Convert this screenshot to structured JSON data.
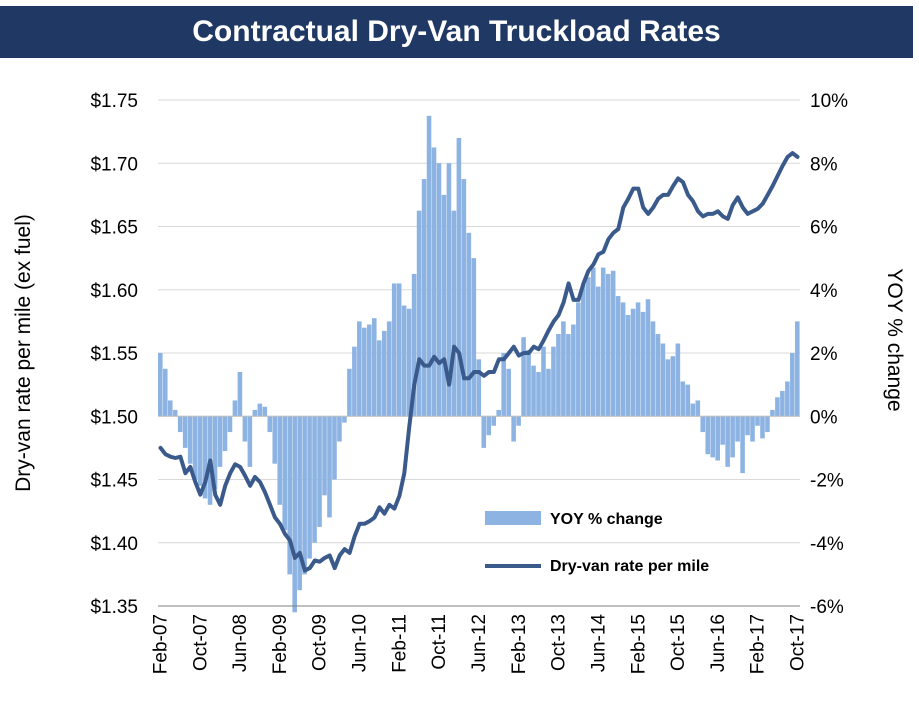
{
  "header": {
    "title": "Contractual Dry-Van Truckload Rates"
  },
  "colors": {
    "title_bg": "#1f3864",
    "bar": "#8db3e2",
    "line": "#3a5a8c",
    "grid": "#d9d9d9"
  },
  "chart_data": {
    "type": "bar+line",
    "title": "Contractual Dry-Van Truckload Rates",
    "ylabel": "Dry-van rate per mile (ex fuel)",
    "y2label": "YOY % change",
    "ylim": [
      1.35,
      1.75
    ],
    "y2lim": [
      -6,
      10
    ],
    "grid": true,
    "y_ticks": [
      "$1.35",
      "$1.40",
      "$1.45",
      "$1.50",
      "$1.55",
      "$1.60",
      "$1.65",
      "$1.70",
      "$1.75"
    ],
    "y2_ticks": [
      "-6%",
      "-4%",
      "-2%",
      "0%",
      "2%",
      "4%",
      "6%",
      "8%",
      "10%"
    ],
    "x_ticks": [
      "Feb-07",
      "Oct-07",
      "Jun-08",
      "Feb-09",
      "Oct-09",
      "Jun-10",
      "Feb-11",
      "Oct-11",
      "Jun-12",
      "Feb-13",
      "Oct-13",
      "Jun-14",
      "Feb-15",
      "Oct-15",
      "Jun-16",
      "Feb-17",
      "Oct-17"
    ],
    "x_start": "2007-02",
    "x_end": "2017-10",
    "legend": [
      "YOY % change",
      "Dry-van rate per mile"
    ],
    "legend_position": "lower-right",
    "series": [
      {
        "name": "YOY % change",
        "type": "bar",
        "axis": "right",
        "points": [
          [
            "2007-02",
            2.0
          ],
          [
            "2007-03",
            1.5
          ],
          [
            "2007-04",
            0.5
          ],
          [
            "2007-05",
            0.2
          ],
          [
            "2007-06",
            -0.5
          ],
          [
            "2007-07",
            -1.0
          ],
          [
            "2007-08",
            -1.5
          ],
          [
            "2007-09",
            -2.0
          ],
          [
            "2007-10",
            -2.2
          ],
          [
            "2007-11",
            -2.6
          ],
          [
            "2007-12",
            -2.8
          ],
          [
            "2008-01",
            -2.3
          ],
          [
            "2008-02",
            -1.6
          ],
          [
            "2008-03",
            -1.1
          ],
          [
            "2008-04",
            -0.5
          ],
          [
            "2008-05",
            0.5
          ],
          [
            "2008-06",
            1.4
          ],
          [
            "2008-07",
            -0.8
          ],
          [
            "2008-08",
            -1.6
          ],
          [
            "2008-09",
            0.2
          ],
          [
            "2008-10",
            0.4
          ],
          [
            "2008-11",
            0.3
          ],
          [
            "2008-12",
            -0.5
          ],
          [
            "2009-01",
            -1.5
          ],
          [
            "2009-02",
            -2.8
          ],
          [
            "2009-03",
            -3.6
          ],
          [
            "2009-04",
            -5.0
          ],
          [
            "2009-05",
            -6.2
          ],
          [
            "2009-06",
            -5.5
          ],
          [
            "2009-07",
            -5.0
          ],
          [
            "2009-08",
            -4.5
          ],
          [
            "2009-09",
            -4.0
          ],
          [
            "2009-10",
            -3.5
          ],
          [
            "2009-11",
            -2.5
          ],
          [
            "2009-12",
            -3.2
          ],
          [
            "2010-01",
            -2.0
          ],
          [
            "2010-02",
            -0.8
          ],
          [
            "2010-03",
            -0.2
          ],
          [
            "2010-04",
            1.5
          ],
          [
            "2010-05",
            2.2
          ],
          [
            "2010-06",
            3.0
          ],
          [
            "2010-07",
            2.8
          ],
          [
            "2010-08",
            2.9
          ],
          [
            "2010-09",
            3.1
          ],
          [
            "2010-10",
            2.4
          ],
          [
            "2010-11",
            2.7
          ],
          [
            "2010-12",
            3.0
          ],
          [
            "2011-01",
            4.2
          ],
          [
            "2011-02",
            4.2
          ],
          [
            "2011-03",
            3.5
          ],
          [
            "2011-04",
            3.4
          ],
          [
            "2011-05",
            4.5
          ],
          [
            "2011-06",
            6.5
          ],
          [
            "2011-07",
            7.5
          ],
          [
            "2011-08",
            9.5
          ],
          [
            "2011-09",
            8.5
          ],
          [
            "2011-10",
            8.0
          ],
          [
            "2011-11",
            7.0
          ],
          [
            "2011-12",
            8.0
          ],
          [
            "2012-01",
            6.5
          ],
          [
            "2012-02",
            8.8
          ],
          [
            "2012-03",
            7.5
          ],
          [
            "2012-04",
            5.8
          ],
          [
            "2012-05",
            5.0
          ],
          [
            "2012-06",
            1.8
          ],
          [
            "2012-07",
            -1.0
          ],
          [
            "2012-08",
            -0.6
          ],
          [
            "2012-09",
            -0.3
          ],
          [
            "2012-10",
            0.2
          ],
          [
            "2012-11",
            2.0
          ],
          [
            "2012-12",
            1.5
          ],
          [
            "2013-01",
            -0.8
          ],
          [
            "2013-02",
            -0.3
          ],
          [
            "2013-03",
            2.5
          ],
          [
            "2013-04",
            2.1
          ],
          [
            "2013-05",
            1.6
          ],
          [
            "2013-06",
            1.4
          ],
          [
            "2013-07",
            2.2
          ],
          [
            "2013-08",
            1.5
          ],
          [
            "2013-09",
            2.2
          ],
          [
            "2013-10",
            2.6
          ],
          [
            "2013-11",
            3.0
          ],
          [
            "2013-12",
            2.6
          ],
          [
            "2014-01",
            2.9
          ],
          [
            "2014-02",
            3.6
          ],
          [
            "2014-03",
            4.2
          ],
          [
            "2014-04",
            4.4
          ],
          [
            "2014-05",
            4.7
          ],
          [
            "2014-06",
            4.1
          ],
          [
            "2014-07",
            4.7
          ],
          [
            "2014-08",
            4.5
          ],
          [
            "2014-09",
            4.6
          ],
          [
            "2014-10",
            3.8
          ],
          [
            "2014-11",
            3.6
          ],
          [
            "2014-12",
            3.2
          ],
          [
            "2015-01",
            3.4
          ],
          [
            "2015-02",
            3.6
          ],
          [
            "2015-03",
            3.3
          ],
          [
            "2015-04",
            3.7
          ],
          [
            "2015-05",
            3.0
          ],
          [
            "2015-06",
            2.6
          ],
          [
            "2015-07",
            2.3
          ],
          [
            "2015-08",
            1.8
          ],
          [
            "2015-09",
            1.9
          ],
          [
            "2015-10",
            2.3
          ],
          [
            "2015-11",
            1.1
          ],
          [
            "2015-12",
            1.0
          ],
          [
            "2016-01",
            0.4
          ],
          [
            "2016-02",
            0.5
          ],
          [
            "2016-03",
            -0.5
          ],
          [
            "2016-04",
            -1.2
          ],
          [
            "2016-05",
            -1.3
          ],
          [
            "2016-06",
            -1.4
          ],
          [
            "2016-07",
            -0.9
          ],
          [
            "2016-08",
            -1.6
          ],
          [
            "2016-09",
            -1.3
          ],
          [
            "2016-10",
            -0.8
          ],
          [
            "2016-11",
            -1.8
          ],
          [
            "2016-12",
            -0.6
          ],
          [
            "2017-01",
            -0.8
          ],
          [
            "2017-02",
            -0.3
          ],
          [
            "2017-03",
            -0.7
          ],
          [
            "2017-04",
            -0.5
          ],
          [
            "2017-05",
            0.2
          ],
          [
            "2017-06",
            0.6
          ],
          [
            "2017-07",
            0.8
          ],
          [
            "2017-08",
            1.1
          ],
          [
            "2017-09",
            2.0
          ],
          [
            "2017-10",
            3.0
          ]
        ]
      },
      {
        "name": "Dry-van rate per mile",
        "type": "line",
        "axis": "left",
        "points": [
          [
            "2007-02",
            1.475
          ],
          [
            "2007-03",
            1.47
          ],
          [
            "2007-04",
            1.468
          ],
          [
            "2007-05",
            1.467
          ],
          [
            "2007-06",
            1.468
          ],
          [
            "2007-07",
            1.455
          ],
          [
            "2007-08",
            1.46
          ],
          [
            "2007-09",
            1.448
          ],
          [
            "2007-10",
            1.438
          ],
          [
            "2007-11",
            1.448
          ],
          [
            "2007-12",
            1.465
          ],
          [
            "2008-01",
            1.438
          ],
          [
            "2008-02",
            1.43
          ],
          [
            "2008-03",
            1.445
          ],
          [
            "2008-04",
            1.455
          ],
          [
            "2008-05",
            1.462
          ],
          [
            "2008-06",
            1.46
          ],
          [
            "2008-07",
            1.453
          ],
          [
            "2008-08",
            1.445
          ],
          [
            "2008-09",
            1.452
          ],
          [
            "2008-10",
            1.448
          ],
          [
            "2008-11",
            1.44
          ],
          [
            "2008-12",
            1.43
          ],
          [
            "2009-01",
            1.42
          ],
          [
            "2009-02",
            1.415
          ],
          [
            "2009-03",
            1.407
          ],
          [
            "2009-04",
            1.402
          ],
          [
            "2009-05",
            1.388
          ],
          [
            "2009-06",
            1.392
          ],
          [
            "2009-07",
            1.378
          ],
          [
            "2009-08",
            1.38
          ],
          [
            "2009-09",
            1.386
          ],
          [
            "2009-10",
            1.385
          ],
          [
            "2009-11",
            1.388
          ],
          [
            "2009-12",
            1.39
          ],
          [
            "2010-01",
            1.38
          ],
          [
            "2010-02",
            1.39
          ],
          [
            "2010-03",
            1.395
          ],
          [
            "2010-04",
            1.392
          ],
          [
            "2010-05",
            1.405
          ],
          [
            "2010-06",
            1.415
          ],
          [
            "2010-07",
            1.415
          ],
          [
            "2010-08",
            1.417
          ],
          [
            "2010-09",
            1.42
          ],
          [
            "2010-10",
            1.428
          ],
          [
            "2010-11",
            1.423
          ],
          [
            "2010-12",
            1.43
          ],
          [
            "2011-01",
            1.427
          ],
          [
            "2011-02",
            1.437
          ],
          [
            "2011-03",
            1.455
          ],
          [
            "2011-04",
            1.492
          ],
          [
            "2011-05",
            1.525
          ],
          [
            "2011-06",
            1.545
          ],
          [
            "2011-07",
            1.54
          ],
          [
            "2011-08",
            1.54
          ],
          [
            "2011-09",
            1.547
          ],
          [
            "2011-10",
            1.542
          ],
          [
            "2011-11",
            1.545
          ],
          [
            "2011-12",
            1.525
          ],
          [
            "2012-01",
            1.555
          ],
          [
            "2012-02",
            1.55
          ],
          [
            "2012-03",
            1.53
          ],
          [
            "2012-04",
            1.53
          ],
          [
            "2012-05",
            1.535
          ],
          [
            "2012-06",
            1.535
          ],
          [
            "2012-07",
            1.532
          ],
          [
            "2012-08",
            1.535
          ],
          [
            "2012-09",
            1.535
          ],
          [
            "2012-10",
            1.545
          ],
          [
            "2012-11",
            1.545
          ],
          [
            "2012-12",
            1.55
          ],
          [
            "2013-01",
            1.555
          ],
          [
            "2013-02",
            1.548
          ],
          [
            "2013-03",
            1.55
          ],
          [
            "2013-04",
            1.55
          ],
          [
            "2013-05",
            1.555
          ],
          [
            "2013-06",
            1.553
          ],
          [
            "2013-07",
            1.56
          ],
          [
            "2013-08",
            1.568
          ],
          [
            "2013-09",
            1.575
          ],
          [
            "2013-10",
            1.58
          ],
          [
            "2013-11",
            1.59
          ],
          [
            "2013-12",
            1.605
          ],
          [
            "2014-01",
            1.592
          ],
          [
            "2014-02",
            1.592
          ],
          [
            "2014-03",
            1.605
          ],
          [
            "2014-04",
            1.615
          ],
          [
            "2014-05",
            1.62
          ],
          [
            "2014-06",
            1.628
          ],
          [
            "2014-07",
            1.63
          ],
          [
            "2014-08",
            1.64
          ],
          [
            "2014-09",
            1.645
          ],
          [
            "2014-10",
            1.648
          ],
          [
            "2014-11",
            1.665
          ],
          [
            "2014-12",
            1.672
          ],
          [
            "2015-01",
            1.68
          ],
          [
            "2015-02",
            1.68
          ],
          [
            "2015-03",
            1.665
          ],
          [
            "2015-04",
            1.66
          ],
          [
            "2015-05",
            1.665
          ],
          [
            "2015-06",
            1.672
          ],
          [
            "2015-07",
            1.675
          ],
          [
            "2015-08",
            1.675
          ],
          [
            "2015-09",
            1.682
          ],
          [
            "2015-10",
            1.688
          ],
          [
            "2015-11",
            1.685
          ],
          [
            "2015-12",
            1.675
          ],
          [
            "2016-01",
            1.67
          ],
          [
            "2016-02",
            1.662
          ],
          [
            "2016-03",
            1.658
          ],
          [
            "2016-04",
            1.66
          ],
          [
            "2016-05",
            1.66
          ],
          [
            "2016-06",
            1.662
          ],
          [
            "2016-07",
            1.658
          ],
          [
            "2016-08",
            1.656
          ],
          [
            "2016-09",
            1.667
          ],
          [
            "2016-10",
            1.673
          ],
          [
            "2016-11",
            1.665
          ],
          [
            "2016-12",
            1.66
          ],
          [
            "2017-01",
            1.662
          ],
          [
            "2017-02",
            1.664
          ],
          [
            "2017-03",
            1.668
          ],
          [
            "2017-04",
            1.675
          ],
          [
            "2017-05",
            1.682
          ],
          [
            "2017-06",
            1.69
          ],
          [
            "2017-07",
            1.698
          ],
          [
            "2017-08",
            1.705
          ],
          [
            "2017-09",
            1.708
          ],
          [
            "2017-10",
            1.705
          ]
        ]
      }
    ]
  }
}
